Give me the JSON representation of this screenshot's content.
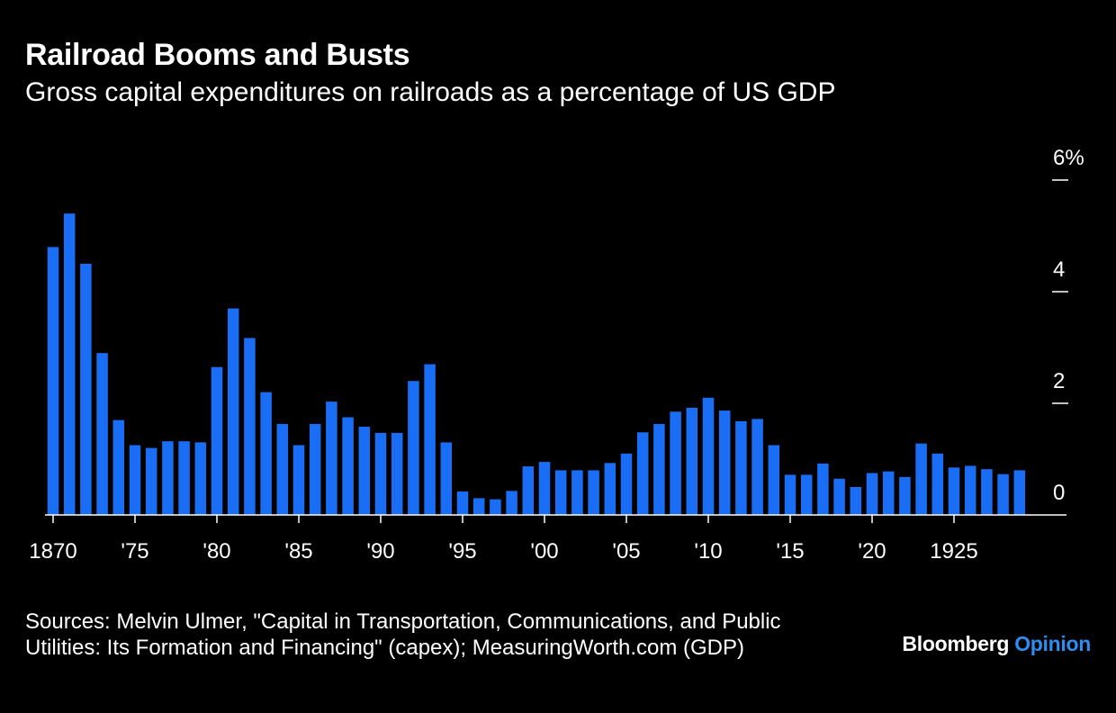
{
  "header": {
    "title": "Railroad Booms and Busts",
    "subtitle": "Gross capital expenditures on railroads as a percentage of US GDP"
  },
  "footer": {
    "source_line1": "Sources: Melvin Ulmer, \"Capital in Transportation, Communications, and Public",
    "source_line2": "Utilities: Its Formation and Financing\" (capex); MeasuringWorth.com (GDP)",
    "brand_name": "Bloomberg",
    "brand_section": "Opinion"
  },
  "colors": {
    "background": "#000000",
    "bar": "#1a6ef5",
    "brand_accent": "#2f8cf0",
    "axis": "#ffffff"
  },
  "chart_data": {
    "type": "bar",
    "x": [
      1870,
      1871,
      1872,
      1873,
      1874,
      1875,
      1876,
      1877,
      1878,
      1879,
      1880,
      1881,
      1882,
      1883,
      1884,
      1885,
      1886,
      1887,
      1888,
      1889,
      1890,
      1891,
      1892,
      1893,
      1894,
      1895,
      1896,
      1897,
      1898,
      1899,
      1900,
      1901,
      1902,
      1903,
      1904,
      1905,
      1906,
      1907,
      1908,
      1909,
      1910,
      1911,
      1912,
      1913,
      1914,
      1915,
      1916,
      1917,
      1918,
      1919,
      1920,
      1921,
      1922,
      1923,
      1924,
      1925,
      1926,
      1927,
      1928,
      1929
    ],
    "values": [
      4.8,
      5.4,
      4.5,
      2.9,
      1.7,
      1.25,
      1.2,
      1.32,
      1.32,
      1.3,
      2.65,
      3.7,
      3.17,
      2.2,
      1.63,
      1.25,
      1.63,
      2.03,
      1.75,
      1.58,
      1.47,
      1.47,
      2.4,
      2.7,
      1.3,
      0.42,
      0.3,
      0.28,
      0.43,
      0.87,
      0.95,
      0.8,
      0.8,
      0.8,
      0.93,
      1.1,
      1.48,
      1.63,
      1.85,
      1.92,
      2.1,
      1.87,
      1.68,
      1.72,
      1.25,
      0.72,
      0.72,
      0.92,
      0.65,
      0.5,
      0.75,
      0.78,
      0.68,
      1.28,
      1.1,
      0.85,
      0.88,
      0.82,
      0.73,
      0.8
    ],
    "x_tick_labels": [
      {
        "x": 1870,
        "label": "1870"
      },
      {
        "x": 1875,
        "label": "'75"
      },
      {
        "x": 1880,
        "label": "'80"
      },
      {
        "x": 1885,
        "label": "'85"
      },
      {
        "x": 1890,
        "label": "'90"
      },
      {
        "x": 1895,
        "label": "'95"
      },
      {
        "x": 1900,
        "label": "'00"
      },
      {
        "x": 1905,
        "label": "'05"
      },
      {
        "x": 1910,
        "label": "'10"
      },
      {
        "x": 1915,
        "label": "'15"
      },
      {
        "x": 1920,
        "label": "'20"
      },
      {
        "x": 1925,
        "label": "1925"
      }
    ],
    "y_ticks": [
      {
        "value": 0,
        "label": "0"
      },
      {
        "value": 2,
        "label": "2"
      },
      {
        "value": 4,
        "label": "4"
      },
      {
        "value": 6,
        "label": "6%"
      }
    ],
    "ylim": [
      0,
      6
    ],
    "y_axis_side": "right",
    "grid": false,
    "title": "Railroad Booms and Busts",
    "subtitle": "Gross capital expenditures on railroads as a percentage of US GDP"
  }
}
